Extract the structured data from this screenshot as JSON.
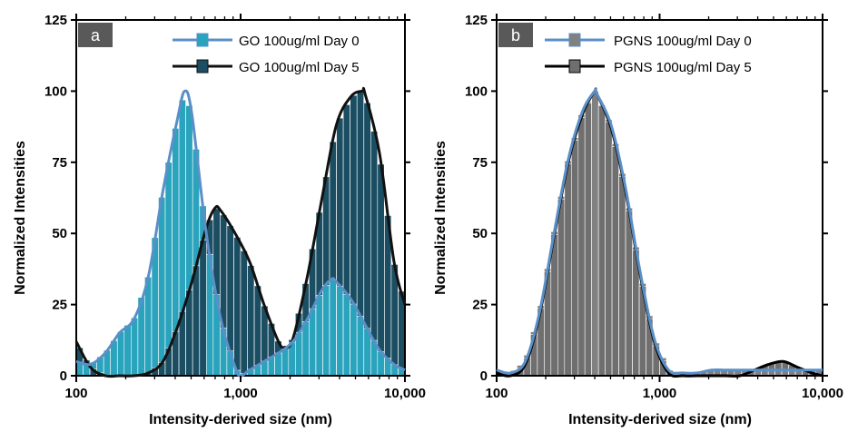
{
  "chart_data": [
    {
      "panel_label": "a",
      "type": "bar+line",
      "xlabel": "Intensity-derived size (nm)",
      "ylabel": "Normalized Intensities",
      "xscale": "log",
      "xlim": [
        100,
        10000
      ],
      "ylim": [
        0,
        125
      ],
      "xticks": [
        100,
        1000,
        10000
      ],
      "xtick_labels": [
        "100",
        "1,000",
        "10,000"
      ],
      "yticks": [
        0,
        25,
        50,
        75,
        100,
        125
      ],
      "ytick_labels": [
        "0",
        "25",
        "50",
        "75",
        "100",
        "125"
      ],
      "legend_position": "top-right",
      "bar_colors": {
        "day0": "#2aa3bd",
        "day5": "#1b4e62"
      },
      "line_colors": {
        "day0": "#5b8fc7",
        "day5": "#111111"
      },
      "series": [
        {
          "name": "GO 100ug/ml Day 0",
          "x": [
            100,
            122,
            150,
            183,
            225,
            275,
            337,
            412,
            457,
            505,
            618,
            757,
            927,
            1000,
            1135,
            1389,
            1700,
            2082,
            2549,
            3120,
            3580,
            3820,
            4677,
            5724,
            7008,
            8579,
            10000
          ],
          "values": [
            5,
            4,
            8,
            15,
            20,
            35,
            65,
            90,
            100,
            92,
            50,
            20,
            3,
            0,
            2,
            5,
            8,
            12,
            20,
            30,
            34,
            33,
            27,
            18,
            9,
            4,
            2
          ]
        },
        {
          "name": "GO 100ug/ml Day 5",
          "x": [
            100,
            122,
            150,
            183,
            225,
            275,
            337,
            412,
            505,
            618,
            700,
            757,
            927,
            1135,
            1389,
            1700,
            1850,
            2082,
            2549,
            3120,
            3820,
            4677,
            5500,
            5724,
            7008,
            8579,
            10000
          ],
          "values": [
            12,
            3,
            0,
            0,
            0,
            1,
            5,
            17,
            33,
            52,
            59,
            58,
            50,
            40,
            25,
            12,
            10,
            13,
            35,
            62,
            88,
            98,
            100,
            99,
            78,
            40,
            25
          ]
        }
      ]
    },
    {
      "panel_label": "b",
      "type": "bar+line",
      "xlabel": "Intensity-derived size (nm)",
      "ylabel": "Normalized Intensities",
      "xscale": "log",
      "xlim": [
        100,
        10000
      ],
      "ylim": [
        0,
        125
      ],
      "xticks": [
        100,
        1000,
        10000
      ],
      "xtick_labels": [
        "100",
        "1,000",
        "10,000"
      ],
      "yticks": [
        0,
        25,
        50,
        75,
        100,
        125
      ],
      "ytick_labels": [
        "0",
        "25",
        "50",
        "75",
        "100",
        "125"
      ],
      "legend_position": "top-right",
      "bar_colors": {
        "day0": "#808080",
        "day5": "#6f6f6f"
      },
      "line_colors": {
        "day0": "#5b8fc7",
        "day5": "#000000"
      },
      "series": [
        {
          "name": "PGNS 100ug/ml Day 0",
          "x": [
            100,
            122,
            150,
            183,
            225,
            275,
            337,
            400,
            412,
            505,
            618,
            757,
            927,
            1135,
            1389,
            1700,
            2082,
            2549,
            3120,
            3820,
            4677,
            5724,
            7008,
            8579,
            10000
          ],
          "values": [
            2,
            1,
            5,
            22,
            50,
            76,
            93,
            100,
            99,
            88,
            66,
            37,
            13,
            2,
            1,
            1,
            2,
            2,
            2,
            2,
            2,
            2,
            2,
            2,
            2
          ]
        },
        {
          "name": "PGNS 100ug/ml Day 5",
          "x": [
            100,
            122,
            150,
            183,
            225,
            275,
            337,
            400,
            412,
            505,
            618,
            757,
            927,
            1135,
            1389,
            1700,
            2082,
            2549,
            3120,
            3820,
            4677,
            5724,
            7008,
            8579,
            10000
          ],
          "values": [
            1,
            0,
            4,
            21,
            49,
            75,
            92,
            100,
            99,
            87,
            65,
            36,
            12,
            1,
            0,
            0,
            0,
            0,
            0,
            2,
            4,
            5,
            3,
            1,
            0
          ]
        }
      ]
    }
  ]
}
